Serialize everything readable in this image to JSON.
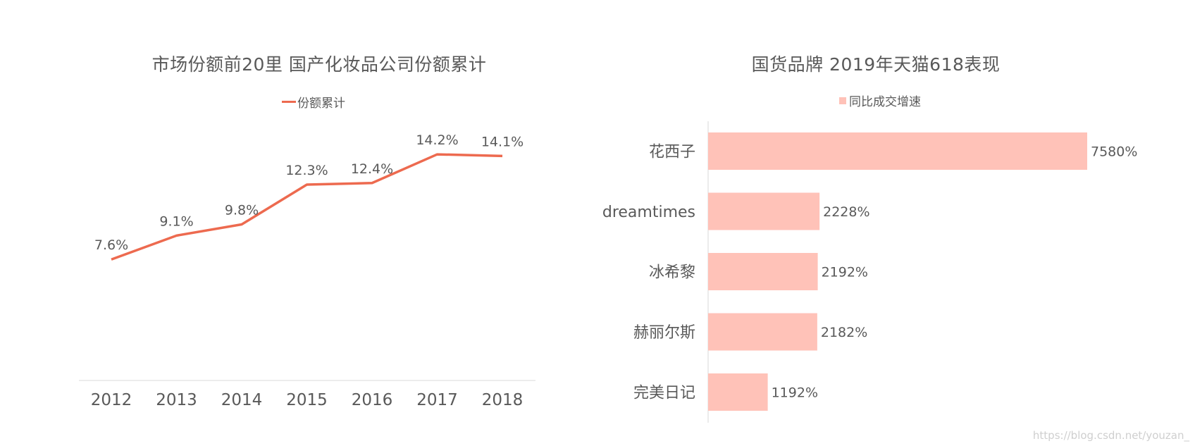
{
  "colors": {
    "line": "#ed6a4f",
    "bar": "#ffc2b8",
    "axis": "#d9d9d9",
    "text": "#595959"
  },
  "chart_data": [
    {
      "type": "line",
      "title": "市场份额前20里  国产化妆品公司份额累计",
      "series": [
        {
          "name": "份额累计",
          "x": [
            "2012",
            "2013",
            "2014",
            "2015",
            "2016",
            "2017",
            "2018"
          ],
          "values": [
            7.6,
            9.1,
            9.8,
            12.3,
            12.4,
            14.2,
            14.1
          ],
          "labels": [
            "7.6%",
            "9.1%",
            "9.8%",
            "12.3%",
            "12.4%",
            "14.2%",
            "14.1%"
          ]
        }
      ],
      "legend": "top",
      "ylim": [
        0,
        20
      ],
      "grid": false
    },
    {
      "type": "bar",
      "orientation": "horizontal",
      "title": "国货品牌 2019年天猫618表现",
      "categories": [
        "花西子",
        "dreamtimes",
        "冰希黎",
        "赫丽尔斯",
        "完美日记"
      ],
      "series": [
        {
          "name": "同比成交增速",
          "values": [
            7580,
            2228,
            2192,
            2182,
            1192
          ],
          "labels": [
            "7580%",
            "2228%",
            "2192%",
            "2182%",
            "1192%"
          ]
        }
      ],
      "legend": "top",
      "xlim": [
        0,
        8000
      ],
      "grid": false
    }
  ],
  "watermark": "https://blog.csdn.net/youzan_"
}
